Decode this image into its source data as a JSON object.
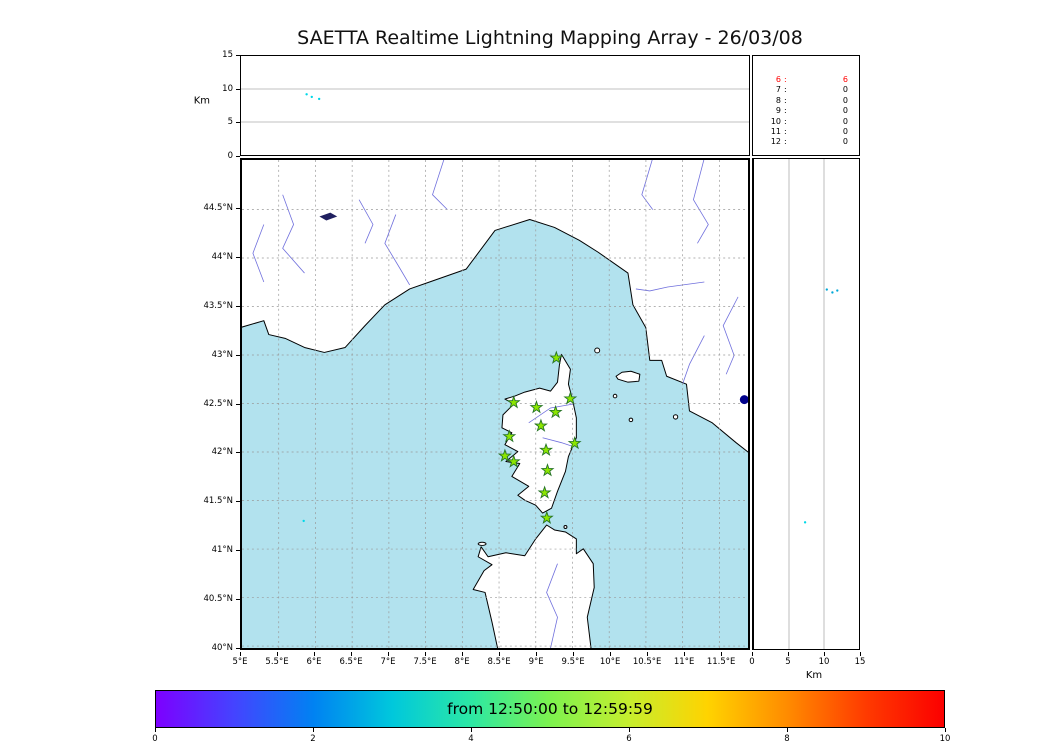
{
  "title": "SAETTA Realtime Lightning Mapping Array - 26/03/08",
  "colors": {
    "sea": "#b2e2ee",
    "land": "#ffffff",
    "coast": "#000000",
    "grid": "#999999",
    "river": "#7070dd",
    "lake": "#202060",
    "station_fill": "#8ce600",
    "station_edge": "#267326"
  },
  "chart_data": [
    {
      "id": "alt_lon",
      "type": "scatter",
      "ylabel": "Km",
      "xlim": [
        5,
        11.89
      ],
      "ylim": [
        0,
        15
      ],
      "yticks": [
        0,
        5,
        10,
        15
      ],
      "grid_y": [
        5,
        10
      ],
      "points": [
        {
          "x": 5.89,
          "y": 9.2,
          "color": "#00d8e8",
          "r": 1.2
        },
        {
          "x": 5.96,
          "y": 8.8,
          "color": "#00d8e8",
          "r": 1.2
        },
        {
          "x": 6.06,
          "y": 8.5,
          "color": "#00d8e8",
          "r": 1.2
        }
      ]
    },
    {
      "id": "counts",
      "type": "table",
      "highlight_color": "#ff0000",
      "rows": [
        {
          "level": "6",
          "count": "6",
          "highlight": true
        },
        {
          "level": "7",
          "count": "0",
          "highlight": false
        },
        {
          "level": "8",
          "count": "0",
          "highlight": false
        },
        {
          "level": "9",
          "count": "0",
          "highlight": false
        },
        {
          "level": "10",
          "count": "0",
          "highlight": false
        },
        {
          "level": "11",
          "count": "0",
          "highlight": false
        },
        {
          "level": "12",
          "count": "0",
          "highlight": false
        }
      ]
    },
    {
      "id": "map",
      "type": "scatter",
      "xlim": [
        5,
        11.89
      ],
      "ylim": [
        39.98,
        45.01
      ],
      "grid": true,
      "xticks": [
        {
          "v": 5,
          "label": "5°E"
        },
        {
          "v": 5.5,
          "label": "5.5°E"
        },
        {
          "v": 6,
          "label": "6°E"
        },
        {
          "v": 6.5,
          "label": "6.5°E"
        },
        {
          "v": 7,
          "label": "7°E"
        },
        {
          "v": 7.5,
          "label": "7.5°E"
        },
        {
          "v": 8,
          "label": "8°E"
        },
        {
          "v": 8.5,
          "label": "8.5°E"
        },
        {
          "v": 9,
          "label": "9°E"
        },
        {
          "v": 9.5,
          "label": "9.5°E"
        },
        {
          "v": 10,
          "label": "10°E"
        },
        {
          "v": 10.5,
          "label": "10.5°E"
        },
        {
          "v": 11,
          "label": "11°E"
        },
        {
          "v": 11.5,
          "label": "11.5°E"
        }
      ],
      "yticks": [
        {
          "v": 40,
          "label": "40°N"
        },
        {
          "v": 40.5,
          "label": "40.5°N"
        },
        {
          "v": 41,
          "label": "41°N"
        },
        {
          "v": 41.5,
          "label": "41.5°N"
        },
        {
          "v": 42,
          "label": "42°N"
        },
        {
          "v": 42.5,
          "label": "42.5°N"
        },
        {
          "v": 43,
          "label": "43°N"
        },
        {
          "v": 43.5,
          "label": "43.5°N"
        },
        {
          "v": 44,
          "label": "44°N"
        },
        {
          "v": 44.5,
          "label": "44.5°N"
        }
      ],
      "stations": [
        {
          "lon": 9.28,
          "lat": 42.97
        },
        {
          "lon": 8.7,
          "lat": 42.51
        },
        {
          "lon": 9.01,
          "lat": 42.46
        },
        {
          "lon": 9.27,
          "lat": 42.41
        },
        {
          "lon": 9.47,
          "lat": 42.55
        },
        {
          "lon": 9.07,
          "lat": 42.27
        },
        {
          "lon": 8.64,
          "lat": 42.16
        },
        {
          "lon": 9.53,
          "lat": 42.09
        },
        {
          "lon": 8.58,
          "lat": 41.96
        },
        {
          "lon": 8.7,
          "lat": 41.9
        },
        {
          "lon": 9.14,
          "lat": 42.02
        },
        {
          "lon": 9.16,
          "lat": 41.81
        },
        {
          "lon": 9.12,
          "lat": 41.58
        },
        {
          "lon": 9.15,
          "lat": 41.32
        }
      ],
      "sources": [
        {
          "lon": 11.84,
          "lat": 42.54,
          "color": "#00008b",
          "r": 4.5
        },
        {
          "lon": 5.84,
          "lat": 41.29,
          "color": "#00d8e8",
          "r": 1.2
        }
      ]
    },
    {
      "id": "alt_lat",
      "type": "scatter",
      "xlabel": "Km",
      "xlim": [
        0,
        15
      ],
      "ylim": [
        39.98,
        45.01
      ],
      "xticks": [
        0,
        5,
        10,
        15
      ],
      "grid_x": [
        5,
        10
      ],
      "points": [
        {
          "x": 10.4,
          "y": 43.67,
          "color": "#00a8d8",
          "r": 1.2
        },
        {
          "x": 11.2,
          "y": 43.64,
          "color": "#00a8d8",
          "r": 1.2
        },
        {
          "x": 11.9,
          "y": 43.66,
          "color": "#00a8d8",
          "r": 1.2
        },
        {
          "x": 7.3,
          "y": 41.28,
          "color": "#00d8e8",
          "r": 1.2
        }
      ]
    },
    {
      "id": "colorbar",
      "type": "colorbar",
      "label": "from 12:50:00 to 12:59:59",
      "xlim": [
        0,
        10
      ],
      "ticks": [
        0,
        2,
        4,
        6,
        8,
        10
      ],
      "gradient": [
        "#7d00ff",
        "#4444ff",
        "#0082f2",
        "#00c8dc",
        "#2ce8a4",
        "#7df24f",
        "#c6ee2e",
        "#ffd300",
        "#ff8c00",
        "#ff3b00",
        "#fb0000"
      ]
    }
  ]
}
